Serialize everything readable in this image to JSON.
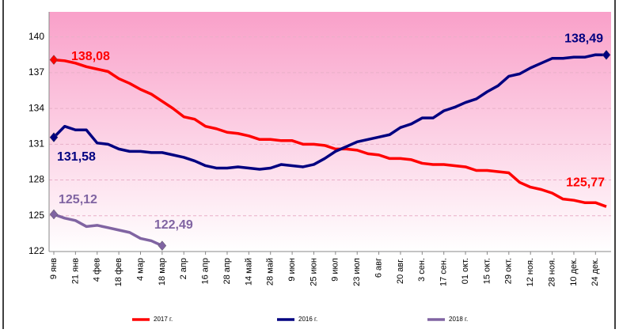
{
  "chart_data": {
    "type": "line",
    "categories": [
      "9 янв",
      null,
      "21 янв",
      null,
      "4 фев",
      null,
      "18 фев",
      null,
      "4 мар",
      null,
      "18 мар",
      null,
      "2 апр",
      null,
      "16 апр",
      null,
      "28 апр",
      null,
      "14 май",
      null,
      "28 май",
      null,
      "9 июн",
      null,
      "25 июн",
      null,
      "9 июл",
      null,
      "23 июл",
      null,
      "6 авг",
      null,
      "20 авг.",
      null,
      "3 сен.",
      null,
      "17 сен.",
      null,
      "01 окт.",
      null,
      "15 окт.",
      null,
      "29 окт.",
      null,
      "12 ноя.",
      null,
      "28 ноя.",
      null,
      "10 дек.",
      null,
      "24 дек.",
      null
    ],
    "series": [
      {
        "name": "2017 г.",
        "color": "#ff0000",
        "values": [
          138.08,
          138.0,
          137.8,
          137.5,
          137.3,
          137.1,
          136.5,
          136.1,
          135.6,
          135.2,
          134.6,
          134.0,
          133.3,
          133.1,
          132.5,
          132.3,
          132.0,
          131.9,
          131.7,
          131.4,
          131.4,
          131.3,
          131.3,
          131.0,
          131.0,
          130.9,
          130.6,
          130.6,
          130.5,
          130.2,
          130.1,
          129.8,
          129.8,
          129.7,
          129.4,
          129.3,
          129.3,
          129.2,
          129.1,
          128.8,
          128.8,
          128.7,
          128.6,
          127.8,
          127.4,
          127.2,
          126.9,
          126.4,
          126.3,
          126.1,
          126.1,
          125.77
        ],
        "value_labels": [
          "138,08",
          null,
          null,
          null,
          null,
          null,
          null,
          null,
          null,
          null,
          null,
          null,
          null,
          null,
          null,
          null,
          null,
          null,
          null,
          null,
          null,
          null,
          null,
          null,
          null,
          null,
          null,
          null,
          null,
          null,
          null,
          null,
          null,
          null,
          null,
          null,
          null,
          null,
          null,
          null,
          null,
          null,
          null,
          null,
          null,
          null,
          null,
          null,
          null,
          null,
          null,
          "125,77"
        ]
      },
      {
        "name": "2016 г.",
        "color": "#000080",
        "values": [
          131.58,
          132.5,
          132.2,
          132.2,
          131.1,
          131.0,
          130.6,
          130.4,
          130.4,
          130.3,
          130.3,
          130.1,
          129.9,
          129.6,
          129.2,
          129.0,
          129.0,
          129.1,
          129.0,
          128.9,
          129.0,
          129.3,
          129.2,
          129.1,
          129.3,
          129.8,
          130.4,
          130.8,
          131.2,
          131.4,
          131.6,
          131.8,
          132.4,
          132.7,
          133.2,
          133.2,
          133.8,
          134.1,
          134.5,
          134.8,
          135.4,
          135.9,
          136.7,
          136.9,
          137.4,
          137.8,
          138.2,
          138.2,
          138.3,
          138.3,
          138.5,
          138.49
        ],
        "value_labels": [
          "131,58",
          null,
          null,
          null,
          null,
          null,
          null,
          null,
          null,
          null,
          null,
          null,
          null,
          null,
          null,
          null,
          null,
          null,
          null,
          null,
          null,
          null,
          null,
          null,
          null,
          null,
          null,
          null,
          null,
          null,
          null,
          null,
          null,
          null,
          null,
          null,
          null,
          null,
          null,
          null,
          null,
          null,
          null,
          null,
          null,
          null,
          null,
          null,
          null,
          null,
          null,
          "138,49"
        ]
      },
      {
        "name": "2018 г.",
        "color": "#8064a2",
        "values": [
          125.12,
          124.8,
          124.6,
          124.1,
          124.2,
          124.0,
          123.8,
          123.6,
          123.1,
          122.9,
          122.49,
          null,
          null,
          null,
          null,
          null,
          null,
          null,
          null,
          null,
          null,
          null,
          null,
          null,
          null,
          null,
          null,
          null,
          null,
          null,
          null,
          null,
          null,
          null,
          null,
          null,
          null,
          null,
          null,
          null,
          null,
          null,
          null,
          null,
          null,
          null,
          null,
          null,
          null,
          null,
          null,
          null
        ],
        "value_labels": [
          "125,12",
          null,
          null,
          null,
          null,
          null,
          null,
          null,
          null,
          null,
          "122,49",
          null,
          null,
          null,
          null,
          null,
          null,
          null,
          null,
          null,
          null,
          null,
          null,
          null,
          null,
          null,
          null,
          null,
          null,
          null,
          null,
          null,
          null,
          null,
          null,
          null,
          null,
          null,
          null,
          null,
          null,
          null,
          null,
          null,
          null,
          null,
          null,
          null,
          null,
          null,
          null,
          null
        ]
      }
    ],
    "ylim": [
      122,
      142.1
    ],
    "yticks": [
      122,
      125,
      128,
      131,
      134,
      137,
      140
    ],
    "grid": true
  }
}
